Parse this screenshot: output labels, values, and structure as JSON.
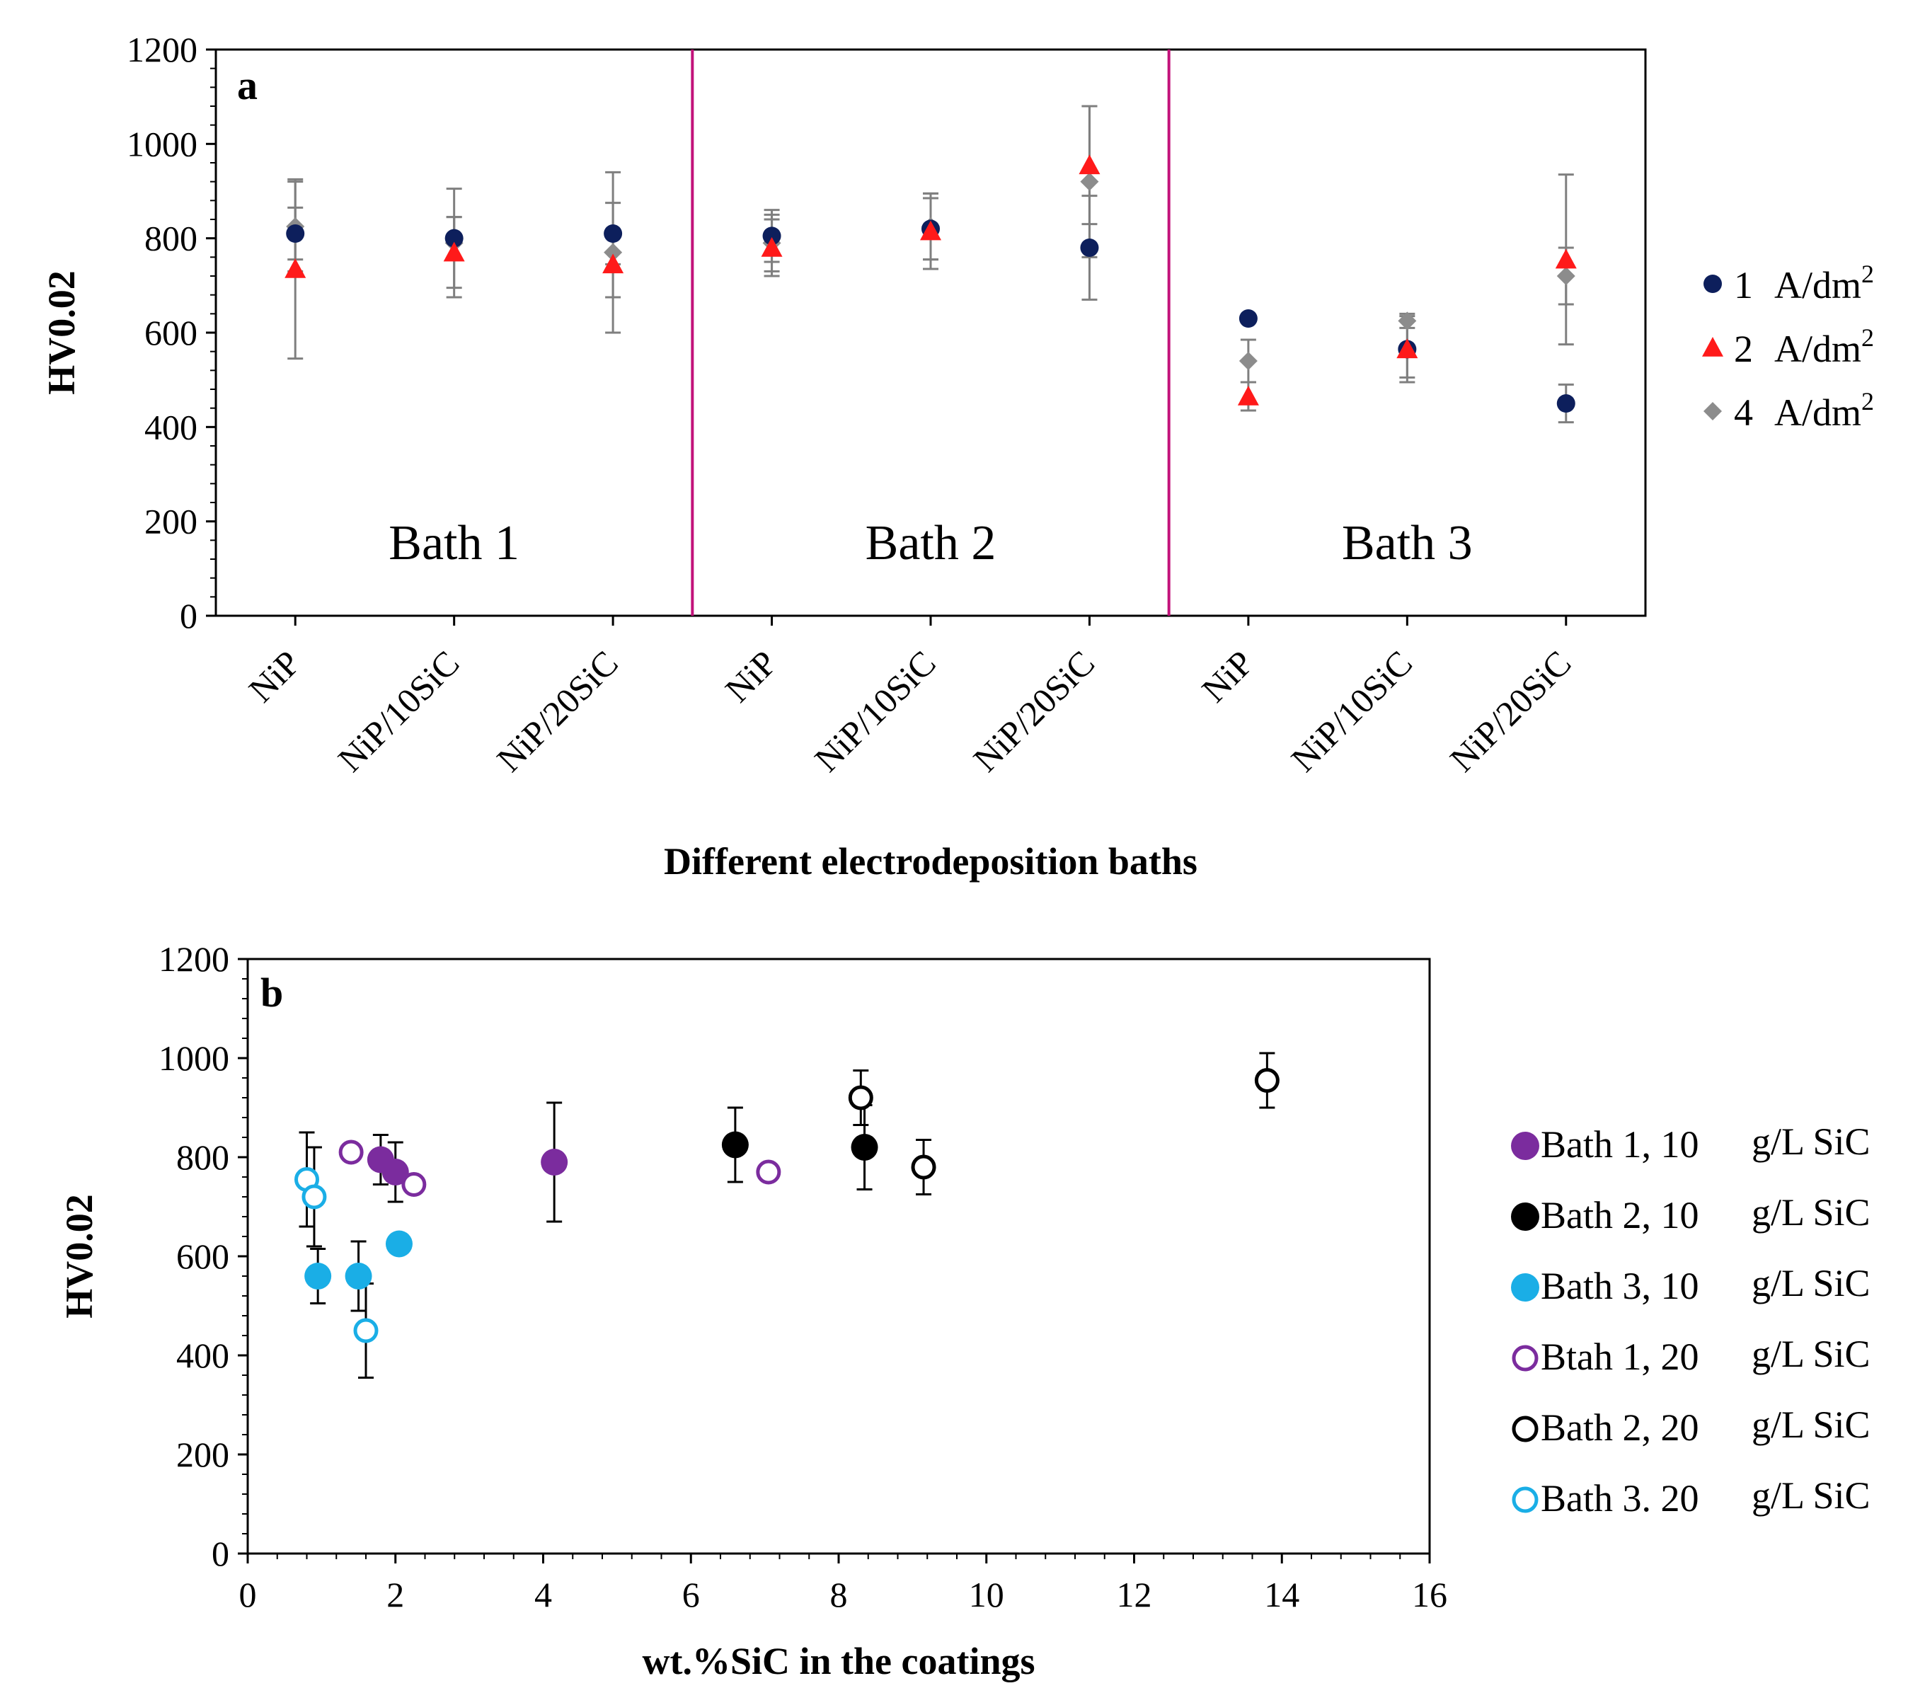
{
  "chart_data": [
    {
      "type": "scatter",
      "panel": "a",
      "xlabel": "Different electrodeposition baths",
      "ylabel": "HV0.02",
      "ylim": [
        0,
        1200
      ],
      "yticks": [
        "0",
        "200",
        "400",
        "600",
        "800",
        "1000",
        "1200"
      ],
      "categories": [
        "NiP",
        "NiP/10SiC",
        "NiP/20SiC",
        "NiP",
        "NiP/10SiC",
        "NiP/20SiC",
        "NiP",
        "NiP/10SiC",
        "NiP/20SiC"
      ],
      "groups": [
        "Bath 1",
        "Bath 2",
        "Bath 3"
      ],
      "series": [
        {
          "name": "1",
          "unit": "A/dm",
          "sup": "2",
          "marker": "circle",
          "color": "#0d1f5c",
          "values": [
            810,
            800,
            810,
            805,
            820,
            780,
            630,
            565,
            450
          ],
          "errors": [
            55,
            45,
            65,
            55,
            65,
            110,
            0,
            60,
            40
          ]
        },
        {
          "name": "2",
          "unit": "A/dm",
          "sup": "2",
          "marker": "triangle",
          "color": "#ff1a1a",
          "values": [
            735,
            770,
            745,
            780,
            815,
            955,
            465,
            565,
            755
          ],
          "errors": [
            190,
            75,
            70,
            60,
            80,
            125,
            30,
            70,
            180
          ]
        },
        {
          "name": "4",
          "unit": "A/dm",
          "sup": "2",
          "marker": "diamond",
          "color": "#8c8c8c",
          "values": [
            825,
            790,
            770,
            790,
            825,
            920,
            540,
            625,
            720
          ],
          "errors": [
            95,
            115,
            170,
            60,
            70,
            160,
            45,
            15,
            60
          ]
        }
      ],
      "legend_position": "right"
    },
    {
      "type": "scatter",
      "panel": "b",
      "xlabel": "wt.%SiC in the coatings",
      "ylabel": "HV0.02",
      "xlim": [
        0,
        16
      ],
      "ylim": [
        0,
        1200
      ],
      "xticks": [
        "0",
        "2",
        "4",
        "6",
        "8",
        "10",
        "12",
        "14",
        "16"
      ],
      "yticks": [
        "0",
        "200",
        "400",
        "600",
        "800",
        "1000",
        "1200"
      ],
      "series": [
        {
          "name": "Bath 1, 10",
          "unit": "g/L SiC",
          "filled": true,
          "color": "#7b2c9e",
          "points": [
            {
              "x": 1.8,
              "y": 795,
              "err": 50
            },
            {
              "x": 2.0,
              "y": 770,
              "err": 60
            },
            {
              "x": 4.15,
              "y": 790,
              "err": 120
            }
          ]
        },
        {
          "name": "Bath 2, 10",
          "unit": "g/L SiC",
          "filled": true,
          "color": "#000000",
          "points": [
            {
              "x": 6.6,
              "y": 825,
              "err": 75
            },
            {
              "x": 8.35,
              "y": 820,
              "err": 85
            }
          ]
        },
        {
          "name": "Bath 3, 10",
          "unit": "g/L SiC",
          "filled": true,
          "color": "#1aaee6",
          "points": [
            {
              "x": 0.95,
              "y": 560,
              "err": 55
            },
            {
              "x": 1.5,
              "y": 560,
              "err": 70
            },
            {
              "x": 2.05,
              "y": 625,
              "err": 0
            }
          ]
        },
        {
          "name": "Btah 1, 20",
          "unit": "g/L SiC",
          "filled": false,
          "color": "#7b2c9e",
          "points": [
            {
              "x": 1.4,
              "y": 810,
              "err": 0
            },
            {
              "x": 2.25,
              "y": 745,
              "err": 0
            },
            {
              "x": 7.05,
              "y": 770,
              "err": 0
            }
          ]
        },
        {
          "name": "Bath 2, 20",
          "unit": "g/L SiC",
          "filled": false,
          "color": "#000000",
          "points": [
            {
              "x": 8.3,
              "y": 920,
              "err": 55
            },
            {
              "x": 9.15,
              "y": 780,
              "err": 55
            },
            {
              "x": 13.8,
              "y": 955,
              "err": 55
            }
          ]
        },
        {
          "name": "Bath 3. 20",
          "unit": "g/L SiC",
          "filled": false,
          "color": "#1aaee6",
          "points": [
            {
              "x": 0.8,
              "y": 755,
              "err": 95
            },
            {
              "x": 0.9,
              "y": 720,
              "err": 100
            },
            {
              "x": 1.6,
              "y": 450,
              "err": 95
            }
          ]
        }
      ],
      "legend_position": "right"
    }
  ]
}
